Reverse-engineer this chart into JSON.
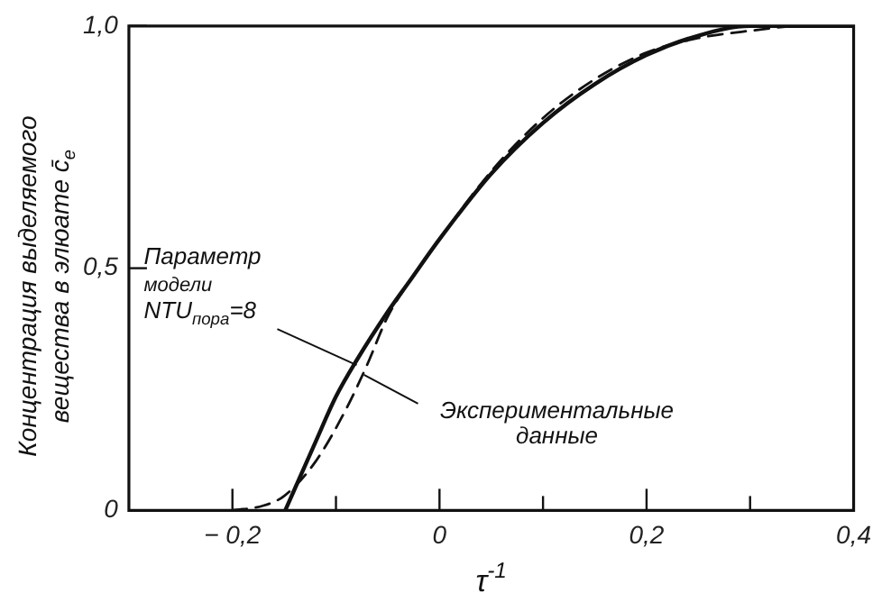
{
  "chart_data": {
    "type": "line",
    "xlabel": "τ$^{-1}$",
    "ylabel": "Концентрация выделяемого вещества в элюате c̄$_{e}$",
    "xlim": [
      -0.3,
      0.4
    ],
    "xticks": [
      {
        "value": -0.2,
        "label": "− 0,2"
      },
      {
        "value": -0.1,
        "label": null
      },
      {
        "value": 0,
        "label": "0"
      },
      {
        "value": 0.1,
        "label": null
      },
      {
        "value": 0.2,
        "label": "0,2"
      },
      {
        "value": 0.3,
        "label": null
      },
      {
        "value": 0.4,
        "label": "0,4"
      }
    ],
    "ylim": [
      0,
      1
    ],
    "yticks": [
      {
        "value": 0,
        "label": "0"
      },
      {
        "value": 0.5,
        "label": "0,5"
      },
      {
        "value": 1,
        "label": "1,0"
      }
    ],
    "grid": false,
    "legend": false,
    "marker": "none",
    "series": [
      {
        "color": "#111111",
        "line_style": "solid",
        "x": [
          -0.149,
          -0.12,
          -0.1,
          -0.08,
          -0.05,
          -0.03,
          0,
          0.05,
          0.1,
          0.15,
          0.2,
          0.25,
          0.3,
          0.35,
          0.4
        ],
        "values": [
          0,
          0.14,
          0.235,
          0.31,
          0.41,
          0.47,
          0.56,
          0.695,
          0.8,
          0.88,
          0.94,
          0.98,
          1.0,
          1.0,
          1.0
        ]
      },
      {
        "color": "#111111",
        "line_style": "dashed",
        "x": [
          -0.2,
          -0.17,
          -0.15,
          -0.12,
          -0.09,
          -0.07,
          -0.05,
          -0.02,
          0,
          0.05,
          0.1,
          0.15,
          0.2,
          0.25,
          0.3,
          0.35,
          0.4
        ],
        "values": [
          0,
          0.01,
          0.03,
          0.1,
          0.21,
          0.3,
          0.4,
          0.5,
          0.56,
          0.7,
          0.81,
          0.89,
          0.945,
          0.975,
          0.99,
          1.0,
          1.0
        ]
      }
    ],
    "annotations": [
      {
        "text": "Параметр модели NTU$_{пора}$=8",
        "x": -0.08,
        "y": 0.3
      },
      {
        "text": "Экспериментальные данные",
        "x": -0.073,
        "y": 0.28
      }
    ]
  }
}
